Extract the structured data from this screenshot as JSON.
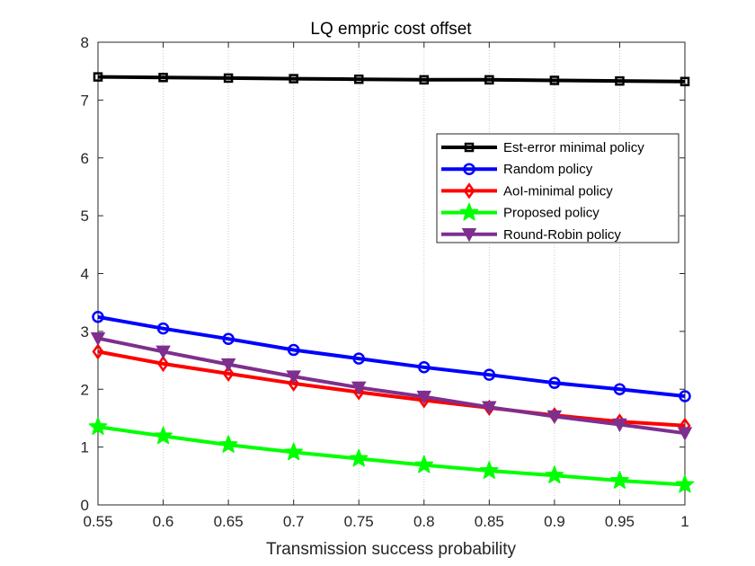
{
  "chart_data": {
    "type": "line",
    "title": "LQ empric cost offset",
    "xlabel": "Transmission success probability",
    "ylabel": "",
    "x": [
      0.55,
      0.6,
      0.65,
      0.7,
      0.75,
      0.8,
      0.85,
      0.9,
      0.95,
      1
    ],
    "x_tick_labels": [
      "0.55",
      "0.6",
      "0.65",
      "0.7",
      "0.75",
      "0.8",
      "0.85",
      "0.9",
      "0.95",
      "1"
    ],
    "y_ticks": [
      0,
      1,
      2,
      3,
      4,
      5,
      6,
      7,
      8
    ],
    "y_tick_labels": [
      "0",
      "1",
      "2",
      "3",
      "4",
      "5",
      "6",
      "7",
      "8"
    ],
    "xlim": [
      0.55,
      1
    ],
    "ylim": [
      0,
      8
    ],
    "grid": "x-only dotted",
    "legend_position": "upper-right",
    "series": [
      {
        "name": "Est-error minimal policy",
        "color": "#000000",
        "marker": "square",
        "values": [
          7.4,
          7.39,
          7.38,
          7.37,
          7.36,
          7.35,
          7.35,
          7.34,
          7.33,
          7.32
        ]
      },
      {
        "name": "Random policy",
        "color": "#0000ff",
        "marker": "circle",
        "values": [
          3.25,
          3.05,
          2.87,
          2.68,
          2.53,
          2.38,
          2.25,
          2.11,
          2.0,
          1.88
        ]
      },
      {
        "name": "AoI-minimal policy",
        "color": "#ff0000",
        "marker": "diamond",
        "values": [
          2.65,
          2.44,
          2.27,
          2.1,
          1.95,
          1.81,
          1.68,
          1.55,
          1.44,
          1.37
        ]
      },
      {
        "name": "Proposed policy",
        "color": "#00ff00",
        "marker": "star",
        "values": [
          1.35,
          1.19,
          1.04,
          0.91,
          0.8,
          0.69,
          0.59,
          0.51,
          0.42,
          0.35
        ]
      },
      {
        "name": "Round-Robin policy",
        "color": "#7e2f8e",
        "marker": "triangle-down",
        "values": [
          2.88,
          2.65,
          2.43,
          2.22,
          2.03,
          1.87,
          1.69,
          1.53,
          1.39,
          1.24
        ]
      }
    ]
  }
}
